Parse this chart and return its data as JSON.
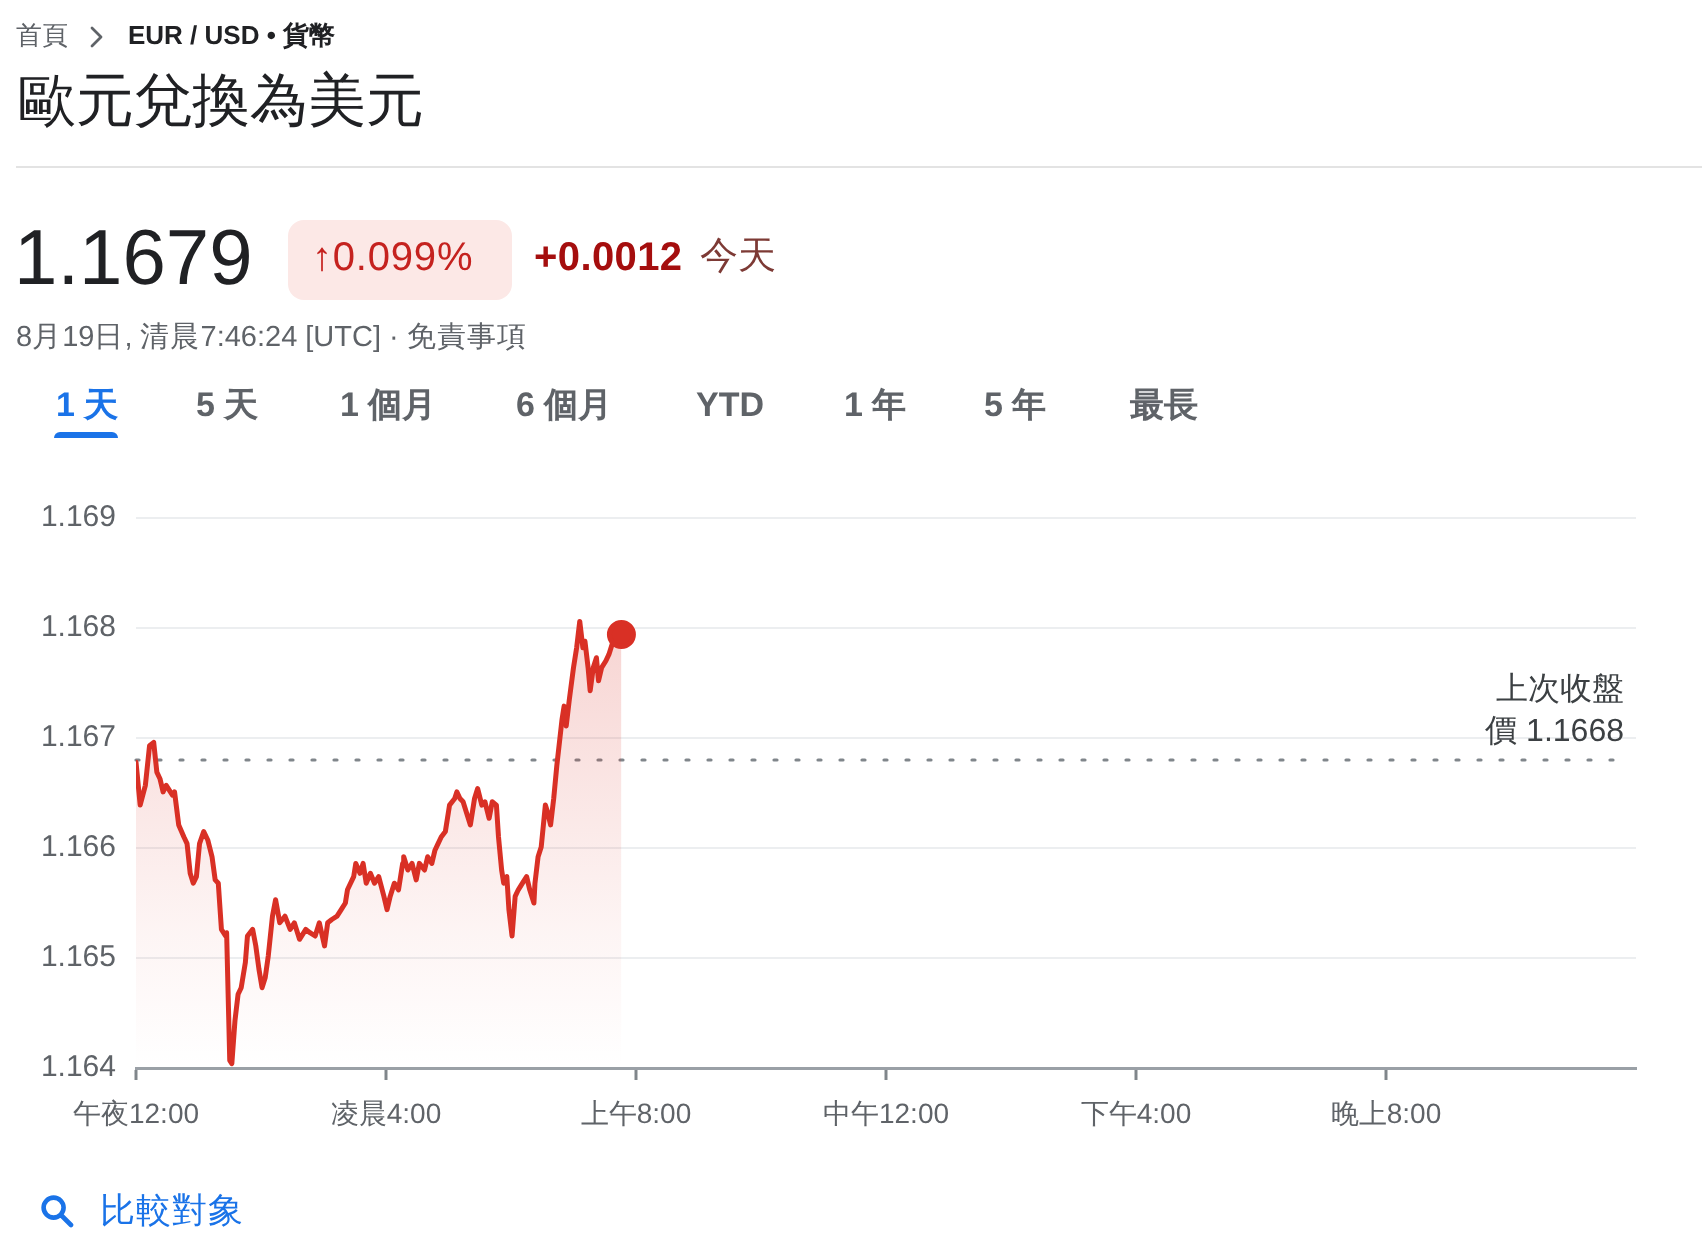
{
  "chart_data": {
    "type": "area",
    "title": "歐元兌換為美元",
    "annotations": [
      "首頁",
      "EUR / USD • 貨幣",
      "1.1679",
      "↑0.099%",
      "+0.0012",
      "今天",
      "8月19日, 清晨7:46:24 [UTC] · 免責事項",
      "1 天",
      "5 天",
      "1 個月",
      "6 個月",
      "YTD",
      "1 年",
      "5 年",
      "最長",
      "比較對象"
    ],
    "xlim": [
      "--08-19T00:00",
      "--08-20T00:00"
    ],
    "xticks": [
      {
        "value": "--08-19T00:00",
        "label": "午夜12:00"
      },
      {
        "value": "--08-19T04:00",
        "label": "凌晨4:00"
      },
      {
        "value": "--08-19T08:00",
        "label": "上午8:00"
      },
      {
        "value": "--08-19T12:00",
        "label": "中午12:00"
      },
      {
        "value": "--08-19T16:00",
        "label": "下午4:00"
      },
      {
        "value": "--08-19T20:00",
        "label": "晚上8:00"
      }
    ],
    "ylim": [
      1.164,
      1.169
    ],
    "yticks": [
      1.164,
      1.165,
      1.166,
      1.167,
      1.168,
      1.169
    ],
    "grid": "y",
    "ref_lines": [
      {
        "axis": "y",
        "value": 1.1668,
        "label": "上次收盤價 1.1668",
        "color": "#80868b",
        "line_style": "dotted"
      }
    ],
    "series": [
      {
        "color": "#d93025",
        "x": [
          "--08-19T00:00",
          "--08-19T00:04",
          "--08-19T00:09",
          "--08-19T00:13",
          "--08-19T00:17",
          "--08-19T00:20",
          "--08-19T00:23",
          "--08-19T00:26",
          "--08-19T00:29",
          "--08-19T00:35",
          "--08-19T00:37",
          "--08-19T00:41",
          "--08-19T00:46",
          "--08-19T00:49",
          "--08-19T00:52",
          "--08-19T00:55",
          "--08-19T00:58",
          "--08-19T01:01",
          "--08-19T01:05",
          "--08-19T01:09",
          "--08-19T01:13",
          "--08-19T01:16",
          "--08-19T01:19",
          "--08-19T01:22",
          "--08-19T01:26",
          "--08-19T01:27",
          "--08-19T01:30",
          "--08-19T01:32",
          "--08-19T01:35",
          "--08-19T01:38",
          "--08-19T01:41",
          "--08-19T01:45",
          "--08-19T01:47",
          "--08-19T01:52",
          "--08-19T01:55",
          "--08-19T01:58",
          "--08-19T02:01",
          "--08-19T02:04",
          "--08-19T02:07",
          "--08-19T02:11",
          "--08-19T02:14",
          "--08-19T02:18",
          "--08-19T02:23",
          "--08-19T02:28",
          "--08-19T02:32",
          "--08-19T02:37",
          "--08-19T02:43",
          "--08-19T02:47",
          "--08-19T02:52",
          "--08-19T02:56",
          "--08-19T03:01",
          "--08-19T03:04",
          "--08-19T03:08",
          "--08-19T03:13",
          "--08-19T03:17",
          "--08-19T03:21",
          "--08-19T03:23",
          "--08-19T03:29",
          "--08-19T03:31",
          "--08-19T03:35",
          "--08-19T03:38",
          "--08-19T03:41",
          "--08-19T03:45",
          "--08-19T03:49",
          "--08-19T03:53",
          "--08-19T03:58",
          "--08-19T04:01",
          "--08-19T04:04",
          "--08-19T04:08",
          "--08-19T04:12",
          "--08-19T04:16",
          "--08-19T04:17",
          "--08-19T04:21",
          "--08-19T04:25",
          "--08-19T04:29",
          "--08-19T04:32",
          "--08-19T04:37",
          "--08-19T04:40",
          "--08-19T04:44",
          "--08-19T04:47",
          "--08-19T04:50",
          "--08-19T04:53",
          "--08-19T04:57",
          "--08-19T05:01",
          "--08-19T05:06",
          "--08-19T05:08",
          "--08-19T05:11",
          "--08-19T05:14",
          "--08-19T05:17",
          "--08-19T05:21",
          "--08-19T05:25",
          "--08-19T05:28",
          "--08-19T05:32",
          "--08-19T05:35",
          "--08-19T05:39",
          "--08-19T05:42",
          "--08-19T05:46",
          "--08-19T05:48",
          "--08-19T05:51",
          "--08-19T05:53",
          "--08-19T05:56",
          "--08-19T05:58",
          "--08-19T06:01",
          "--08-19T06:04",
          "--08-19T06:07",
          "--08-19T06:11",
          "--08-19T06:15",
          "--08-19T06:18",
          "--08-19T06:22",
          "--08-19T06:23",
          "--08-19T06:26",
          "--08-19T06:29",
          "--08-19T06:33",
          "--08-19T06:35",
          "--08-19T06:38",
          "--08-19T06:41",
          "--08-19T06:44",
          "--08-19T06:49",
          "--08-19T06:51",
          "--08-19T06:53",
          "--08-19T06:56",
          "--08-19T07:00",
          "--08-19T07:03",
          "--08-19T07:06",
          "--08-19T07:09",
          "--08-19T07:11",
          "--08-19T07:14",
          "--08-19T07:16",
          "--08-19T07:19",
          "--08-19T07:22",
          "--08-19T07:24",
          "--08-19T07:27",
          "--08-19T07:31",
          "--08-19T07:34",
          "--08-19T07:38",
          "--08-19T07:42",
          "--08-19T07:44",
          "--08-19T07:46"
        ],
        "values": [
          1.16678,
          1.16639,
          1.16657,
          1.16693,
          1.16696,
          1.16669,
          1.16663,
          1.16651,
          1.16657,
          1.16648,
          1.16651,
          1.16621,
          1.1661,
          1.16604,
          1.16577,
          1.16568,
          1.16574,
          1.16604,
          1.16615,
          1.16607,
          1.16592,
          1.16571,
          1.16568,
          1.16526,
          1.1652,
          1.16523,
          1.16407,
          1.16404,
          1.16443,
          1.16467,
          1.16473,
          1.16496,
          1.1652,
          1.16526,
          1.16511,
          1.1649,
          1.16473,
          1.16482,
          1.16502,
          1.16538,
          1.16553,
          1.16532,
          1.16538,
          1.16526,
          1.16532,
          1.16517,
          1.16526,
          1.16523,
          1.1652,
          1.16532,
          1.16511,
          1.16532,
          1.16535,
          1.16538,
          1.16544,
          1.1655,
          1.16562,
          1.16574,
          1.16586,
          1.16577,
          1.16586,
          1.16568,
          1.16577,
          1.16568,
          1.16574,
          1.16556,
          1.16544,
          1.16556,
          1.16568,
          1.16562,
          1.16586,
          1.16592,
          1.1658,
          1.16586,
          1.16571,
          1.16586,
          1.1658,
          1.16592,
          1.16586,
          1.16598,
          1.16604,
          1.1661,
          1.16615,
          1.16639,
          1.16645,
          1.16651,
          1.16645,
          1.16642,
          1.16633,
          1.16621,
          1.16645,
          1.16654,
          1.16639,
          1.16642,
          1.16627,
          1.16642,
          1.16639,
          1.1661,
          1.1658,
          1.16568,
          1.16574,
          1.16544,
          1.1652,
          1.16556,
          1.16562,
          1.16568,
          1.16574,
          1.16562,
          1.1655,
          1.16568,
          1.16592,
          1.16601,
          1.16639,
          1.16633,
          1.16621,
          1.16645,
          1.16675,
          1.16717,
          1.16729,
          1.16711,
          1.16735,
          1.16764,
          1.16782,
          1.16806,
          1.16782,
          1.16788,
          1.16764,
          1.16743,
          1.16764,
          1.16773,
          1.16752,
          1.16764,
          1.1677,
          1.16776,
          1.16788,
          1.168,
          1.16803,
          1.16794
        ]
      },
      {
        "type": "scatter",
        "color": "#d93025",
        "marker": "circle",
        "x": [
          "--08-19T07:46"
        ],
        "values": [
          1.16794
        ]
      }
    ]
  }
}
